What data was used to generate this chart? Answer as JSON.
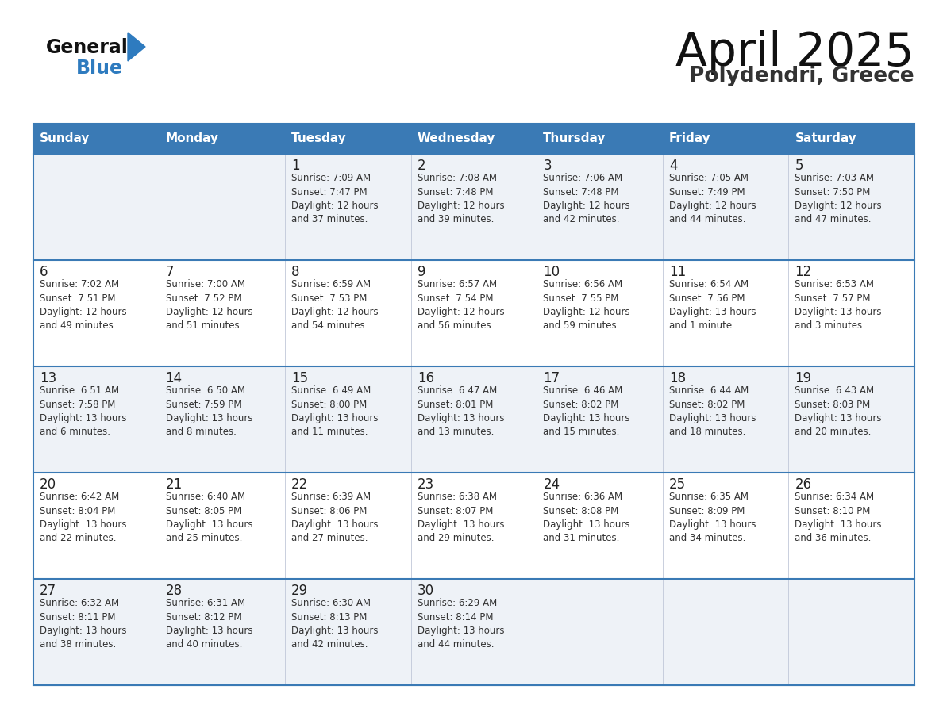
{
  "title": "April 2025",
  "subtitle": "Polydendri, Greece",
  "days_of_week": [
    "Sunday",
    "Monday",
    "Tuesday",
    "Wednesday",
    "Thursday",
    "Friday",
    "Saturday"
  ],
  "header_bg": "#3a7ab5",
  "header_text": "#ffffff",
  "cell_bg_odd": "#eef2f7",
  "cell_bg_even": "#ffffff",
  "separator_color": "#3a7ab5",
  "grid_color": "#c0c8d8",
  "day_num_color": "#222222",
  "text_color": "#333333",
  "title_color": "#111111",
  "subtitle_color": "#333333",
  "logo_general_color": "#111111",
  "logo_blue_color": "#2e7bbf",
  "fig_width": 11.88,
  "fig_height": 9.18,
  "dpi": 100,
  "weeks": [
    [
      {
        "day": null,
        "info": null
      },
      {
        "day": null,
        "info": null
      },
      {
        "day": 1,
        "info": "Sunrise: 7:09 AM\nSunset: 7:47 PM\nDaylight: 12 hours\nand 37 minutes."
      },
      {
        "day": 2,
        "info": "Sunrise: 7:08 AM\nSunset: 7:48 PM\nDaylight: 12 hours\nand 39 minutes."
      },
      {
        "day": 3,
        "info": "Sunrise: 7:06 AM\nSunset: 7:48 PM\nDaylight: 12 hours\nand 42 minutes."
      },
      {
        "day": 4,
        "info": "Sunrise: 7:05 AM\nSunset: 7:49 PM\nDaylight: 12 hours\nand 44 minutes."
      },
      {
        "day": 5,
        "info": "Sunrise: 7:03 AM\nSunset: 7:50 PM\nDaylight: 12 hours\nand 47 minutes."
      }
    ],
    [
      {
        "day": 6,
        "info": "Sunrise: 7:02 AM\nSunset: 7:51 PM\nDaylight: 12 hours\nand 49 minutes."
      },
      {
        "day": 7,
        "info": "Sunrise: 7:00 AM\nSunset: 7:52 PM\nDaylight: 12 hours\nand 51 minutes."
      },
      {
        "day": 8,
        "info": "Sunrise: 6:59 AM\nSunset: 7:53 PM\nDaylight: 12 hours\nand 54 minutes."
      },
      {
        "day": 9,
        "info": "Sunrise: 6:57 AM\nSunset: 7:54 PM\nDaylight: 12 hours\nand 56 minutes."
      },
      {
        "day": 10,
        "info": "Sunrise: 6:56 AM\nSunset: 7:55 PM\nDaylight: 12 hours\nand 59 minutes."
      },
      {
        "day": 11,
        "info": "Sunrise: 6:54 AM\nSunset: 7:56 PM\nDaylight: 13 hours\nand 1 minute."
      },
      {
        "day": 12,
        "info": "Sunrise: 6:53 AM\nSunset: 7:57 PM\nDaylight: 13 hours\nand 3 minutes."
      }
    ],
    [
      {
        "day": 13,
        "info": "Sunrise: 6:51 AM\nSunset: 7:58 PM\nDaylight: 13 hours\nand 6 minutes."
      },
      {
        "day": 14,
        "info": "Sunrise: 6:50 AM\nSunset: 7:59 PM\nDaylight: 13 hours\nand 8 minutes."
      },
      {
        "day": 15,
        "info": "Sunrise: 6:49 AM\nSunset: 8:00 PM\nDaylight: 13 hours\nand 11 minutes."
      },
      {
        "day": 16,
        "info": "Sunrise: 6:47 AM\nSunset: 8:01 PM\nDaylight: 13 hours\nand 13 minutes."
      },
      {
        "day": 17,
        "info": "Sunrise: 6:46 AM\nSunset: 8:02 PM\nDaylight: 13 hours\nand 15 minutes."
      },
      {
        "day": 18,
        "info": "Sunrise: 6:44 AM\nSunset: 8:02 PM\nDaylight: 13 hours\nand 18 minutes."
      },
      {
        "day": 19,
        "info": "Sunrise: 6:43 AM\nSunset: 8:03 PM\nDaylight: 13 hours\nand 20 minutes."
      }
    ],
    [
      {
        "day": 20,
        "info": "Sunrise: 6:42 AM\nSunset: 8:04 PM\nDaylight: 13 hours\nand 22 minutes."
      },
      {
        "day": 21,
        "info": "Sunrise: 6:40 AM\nSunset: 8:05 PM\nDaylight: 13 hours\nand 25 minutes."
      },
      {
        "day": 22,
        "info": "Sunrise: 6:39 AM\nSunset: 8:06 PM\nDaylight: 13 hours\nand 27 minutes."
      },
      {
        "day": 23,
        "info": "Sunrise: 6:38 AM\nSunset: 8:07 PM\nDaylight: 13 hours\nand 29 minutes."
      },
      {
        "day": 24,
        "info": "Sunrise: 6:36 AM\nSunset: 8:08 PM\nDaylight: 13 hours\nand 31 minutes."
      },
      {
        "day": 25,
        "info": "Sunrise: 6:35 AM\nSunset: 8:09 PM\nDaylight: 13 hours\nand 34 minutes."
      },
      {
        "day": 26,
        "info": "Sunrise: 6:34 AM\nSunset: 8:10 PM\nDaylight: 13 hours\nand 36 minutes."
      }
    ],
    [
      {
        "day": 27,
        "info": "Sunrise: 6:32 AM\nSunset: 8:11 PM\nDaylight: 13 hours\nand 38 minutes."
      },
      {
        "day": 28,
        "info": "Sunrise: 6:31 AM\nSunset: 8:12 PM\nDaylight: 13 hours\nand 40 minutes."
      },
      {
        "day": 29,
        "info": "Sunrise: 6:30 AM\nSunset: 8:13 PM\nDaylight: 13 hours\nand 42 minutes."
      },
      {
        "day": 30,
        "info": "Sunrise: 6:29 AM\nSunset: 8:14 PM\nDaylight: 13 hours\nand 44 minutes."
      },
      {
        "day": null,
        "info": null
      },
      {
        "day": null,
        "info": null
      },
      {
        "day": null,
        "info": null
      }
    ]
  ]
}
